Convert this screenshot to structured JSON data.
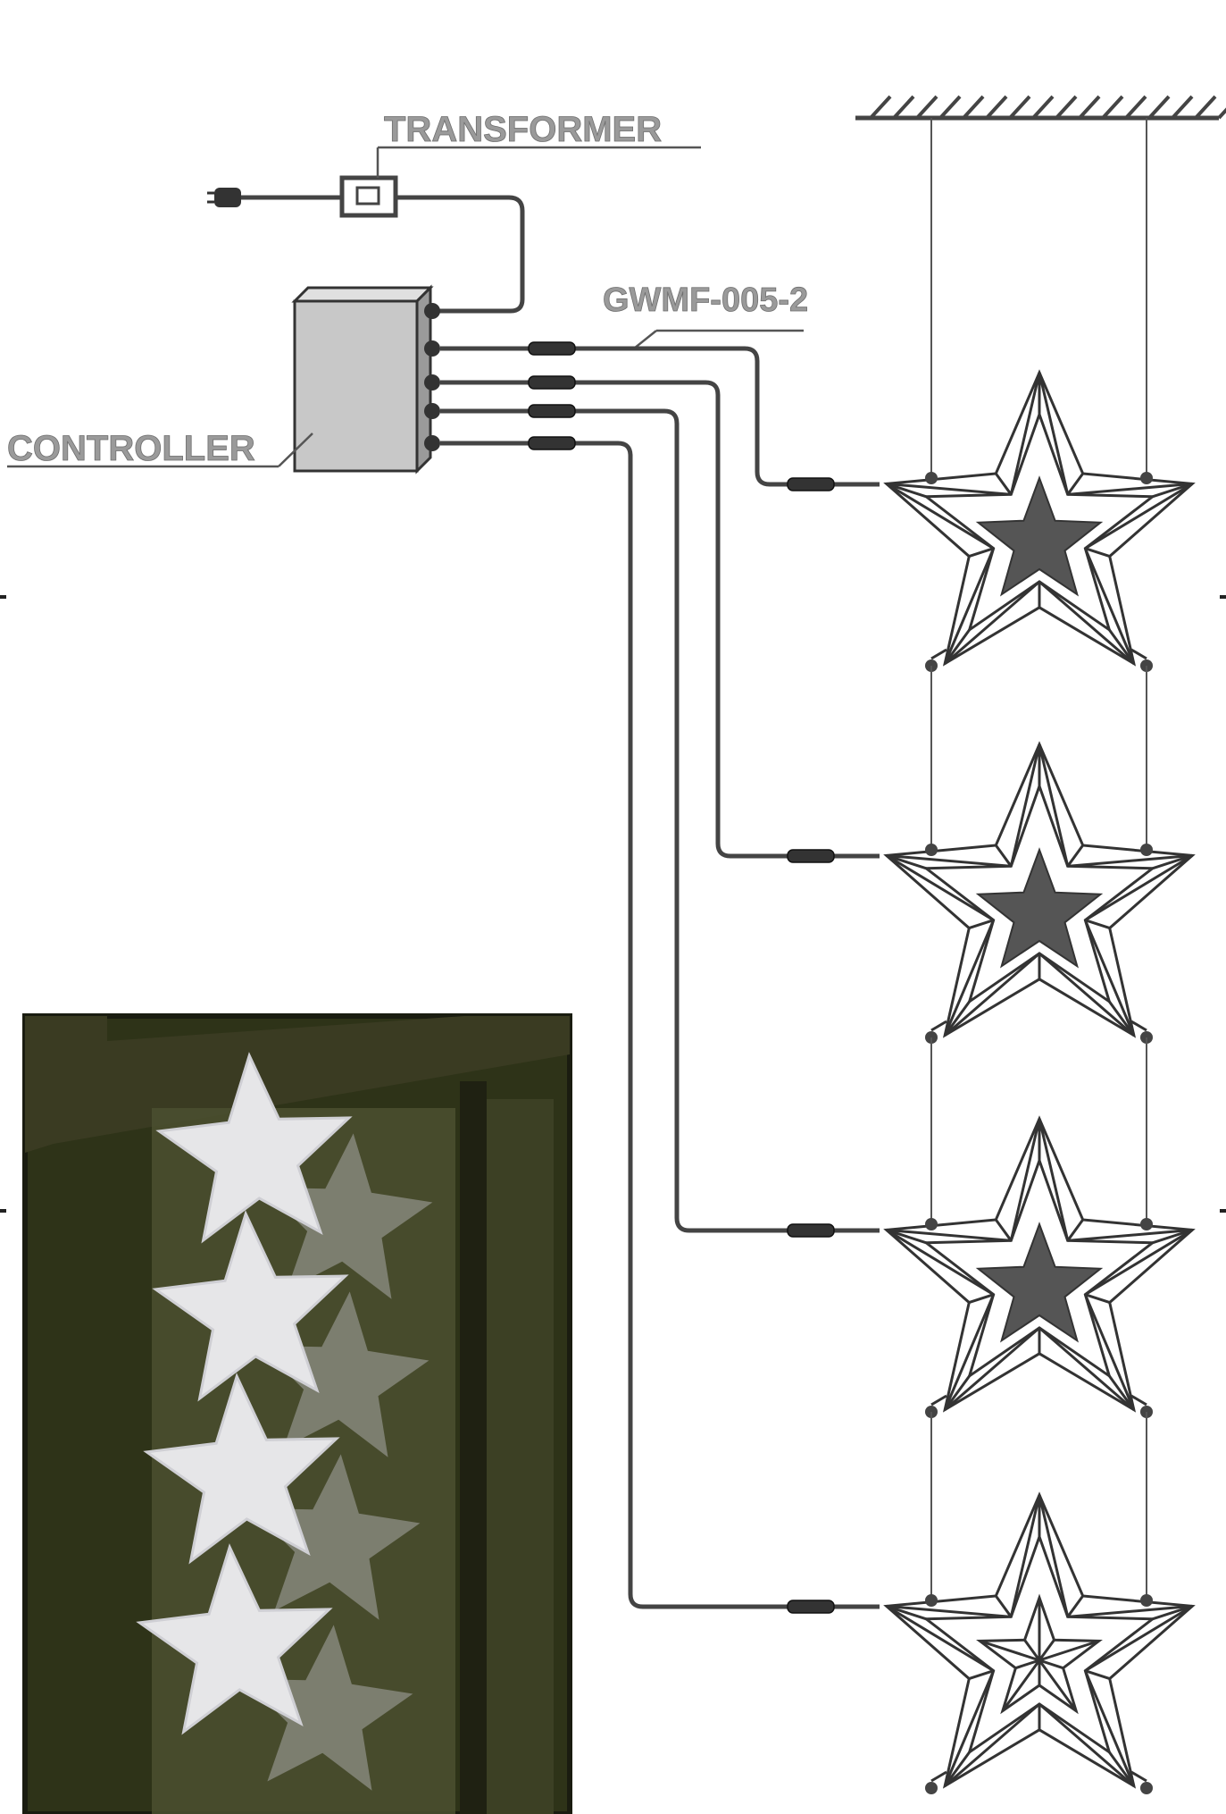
{
  "labels": {
    "transformer": "TRANSFORMER",
    "controller": "CONTROLLER",
    "cable": "GWMF-005-2"
  },
  "diagram": {
    "component_count": 4,
    "photo_star_count": 4
  },
  "colors": {
    "line": "#444444",
    "label_text": "#9a9a9a",
    "controller_fill": "#c8c8c8",
    "star_center": "#555555",
    "photo_bg": "#2e3318",
    "photo_star": "#e6e6e8"
  }
}
